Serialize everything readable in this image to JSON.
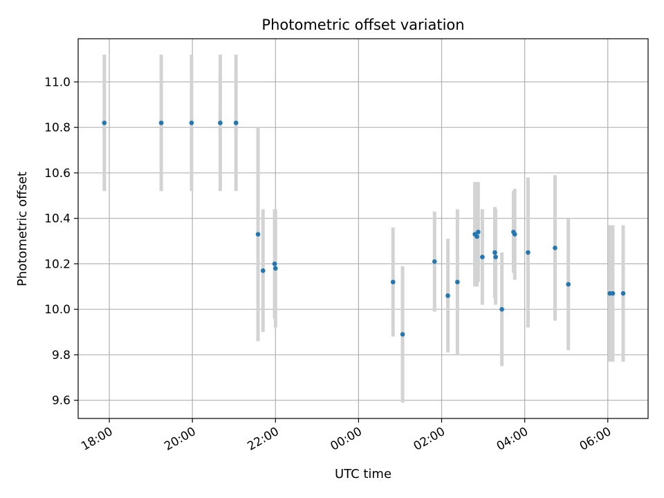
{
  "chart_data": {
    "type": "scatter",
    "title": "Photometric offset variation",
    "xlabel": "UTC time",
    "ylabel": "Photometric offset",
    "x_unit": "hours",
    "xlim": [
      17.25,
      30.97
    ],
    "ylim": [
      9.52,
      11.19
    ],
    "x_ticks": [
      {
        "value": 18,
        "label": "18:00"
      },
      {
        "value": 20,
        "label": "20:00"
      },
      {
        "value": 22,
        "label": "22:00"
      },
      {
        "value": 24,
        "label": "00:00"
      },
      {
        "value": 26,
        "label": "02:00"
      },
      {
        "value": 28,
        "label": "04:00"
      },
      {
        "value": 30,
        "label": "06:00"
      }
    ],
    "y_ticks": [
      {
        "value": 9.6,
        "label": "9.6"
      },
      {
        "value": 9.8,
        "label": "9.8"
      },
      {
        "value": 10.0,
        "label": "10.0"
      },
      {
        "value": 10.2,
        "label": "10.2"
      },
      {
        "value": 10.4,
        "label": "10.4"
      },
      {
        "value": 10.6,
        "label": "10.6"
      },
      {
        "value": 10.8,
        "label": "10.8"
      },
      {
        "value": 11.0,
        "label": "11.0"
      }
    ],
    "grid": true,
    "point_color": "#1f77b4",
    "errorbar_color": "#d3d3d3",
    "points": [
      {
        "x": 17.88,
        "y": 10.82,
        "err": 0.3
      },
      {
        "x": 19.25,
        "y": 10.82,
        "err": 0.3
      },
      {
        "x": 19.98,
        "y": 10.82,
        "err": 0.3
      },
      {
        "x": 20.67,
        "y": 10.82,
        "err": 0.3
      },
      {
        "x": 21.05,
        "y": 10.82,
        "err": 0.3
      },
      {
        "x": 21.58,
        "y": 10.33,
        "err": 0.47
      },
      {
        "x": 21.7,
        "y": 10.17,
        "err": 0.27
      },
      {
        "x": 21.98,
        "y": 10.2,
        "err": 0.24
      },
      {
        "x": 22.0,
        "y": 10.18,
        "err": 0.26
      },
      {
        "x": 24.83,
        "y": 10.12,
        "err": 0.24
      },
      {
        "x": 25.06,
        "y": 9.89,
        "err": 0.3
      },
      {
        "x": 25.83,
        "y": 10.21,
        "err": 0.22
      },
      {
        "x": 26.15,
        "y": 10.06,
        "err": 0.25
      },
      {
        "x": 26.38,
        "y": 10.12,
        "err": 0.32
      },
      {
        "x": 26.8,
        "y": 10.33,
        "err": 0.23
      },
      {
        "x": 26.85,
        "y": 10.32,
        "err": 0.22
      },
      {
        "x": 26.88,
        "y": 10.34,
        "err": 0.22
      },
      {
        "x": 26.98,
        "y": 10.23,
        "err": 0.21
      },
      {
        "x": 27.28,
        "y": 10.25,
        "err": 0.2
      },
      {
        "x": 27.3,
        "y": 10.23,
        "err": 0.21
      },
      {
        "x": 27.45,
        "y": 10.0,
        "err": 0.25
      },
      {
        "x": 27.73,
        "y": 10.34,
        "err": 0.18
      },
      {
        "x": 27.76,
        "y": 10.33,
        "err": 0.2
      },
      {
        "x": 28.08,
        "y": 10.25,
        "err": 0.33
      },
      {
        "x": 28.73,
        "y": 10.27,
        "err": 0.32
      },
      {
        "x": 29.05,
        "y": 10.11,
        "err": 0.29
      },
      {
        "x": 30.05,
        "y": 10.07,
        "err": 0.3
      },
      {
        "x": 30.12,
        "y": 10.07,
        "err": 0.3
      },
      {
        "x": 30.37,
        "y": 10.07,
        "err": 0.3
      }
    ]
  }
}
